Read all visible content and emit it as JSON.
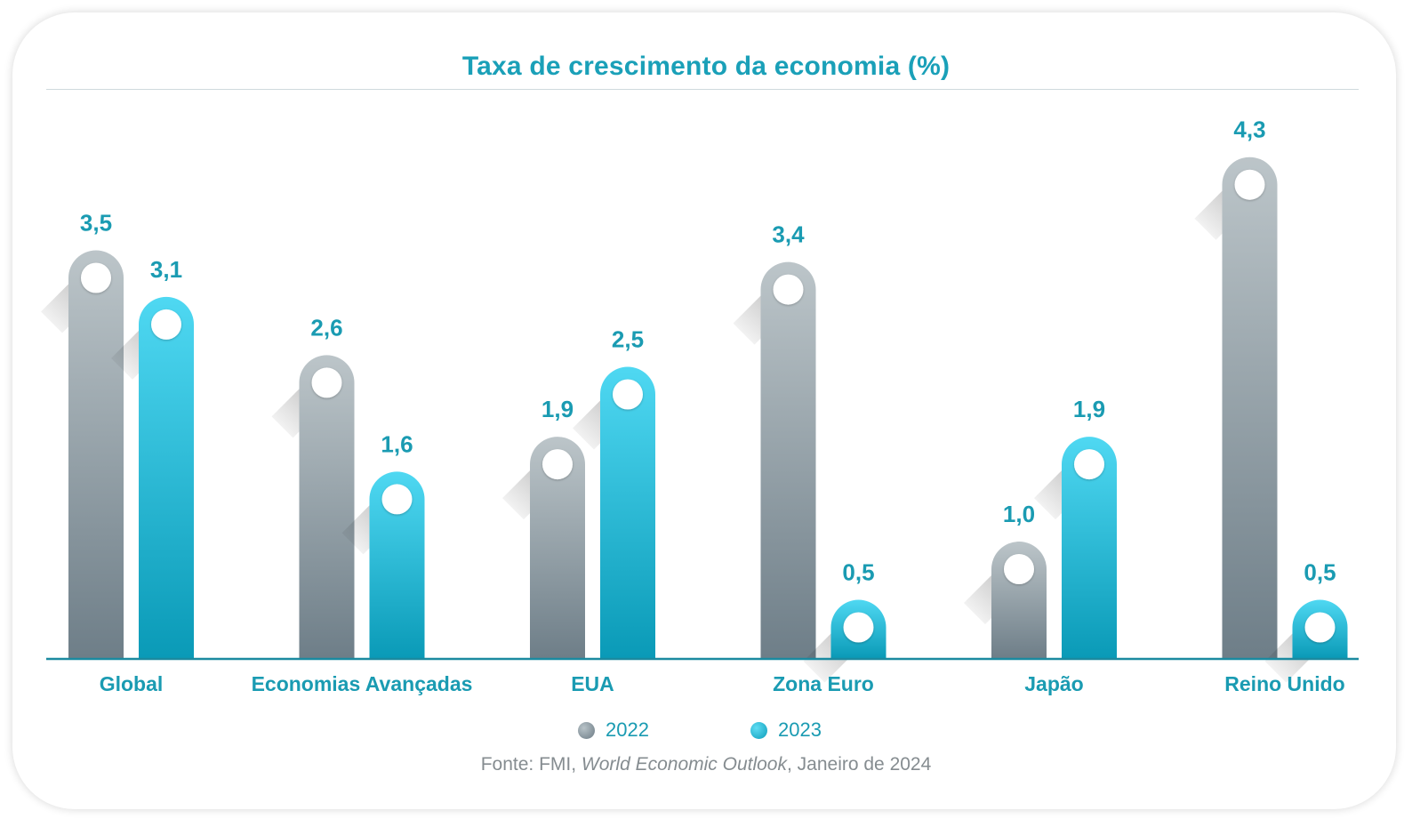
{
  "chart_data": {
    "type": "bar",
    "title": "Taxa de crescimento da economia (%)",
    "categories": [
      "Global",
      "Economias Avançadas",
      "EUA",
      "Zona Euro",
      "Japão",
      "Reino Unido"
    ],
    "series": [
      {
        "name": "2022",
        "values": [
          3.5,
          2.6,
          1.9,
          3.4,
          1.0,
          4.3
        ],
        "labels": [
          "3,5",
          "2,6",
          "1,9",
          "3,4",
          "1,0",
          "4,3"
        ],
        "color": "#7a8891"
      },
      {
        "name": "2023",
        "values": [
          3.1,
          1.6,
          2.5,
          0.5,
          1.9,
          0.5
        ],
        "labels": [
          "3,1",
          "1,6",
          "2,5",
          "0,5",
          "1,9",
          "0,5"
        ],
        "color": "#1ab3d2"
      }
    ],
    "ylim": [
      0,
      4.3
    ],
    "legend_position": "bottom-center",
    "grid": false,
    "source": {
      "prefix": "Fonte: FMI, ",
      "italic": "World Economic Outlook",
      "suffix": ", Janeiro de 2024"
    }
  },
  "colors": {
    "accent": "#1aa0b8",
    "label": "#1a9bb2",
    "bar_2022_top": "#bcc5c9",
    "bar_2022_bottom": "#6e7e88",
    "bar_2023_top": "#4fd8f2",
    "bar_2023_bottom": "#0a9ab7",
    "axis": "#1b8aa0"
  }
}
